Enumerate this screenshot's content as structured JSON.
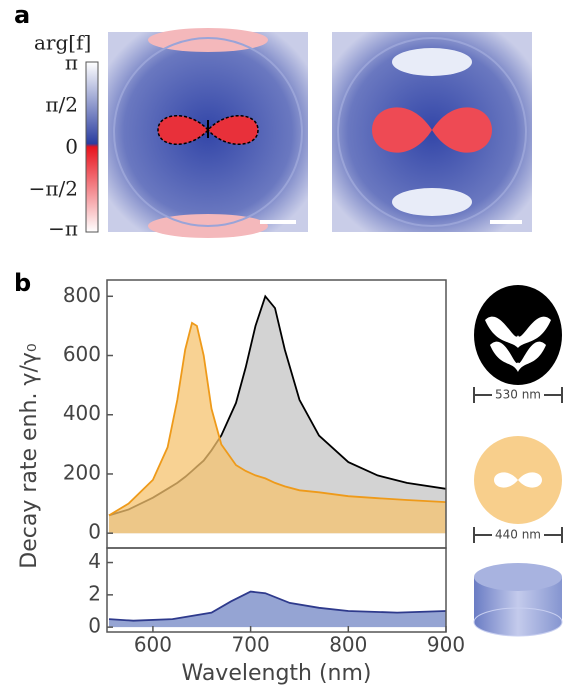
{
  "panel_labels": [
    "a",
    "b"
  ],
  "colorbar": {
    "label": "arg[f]",
    "ticks": [
      "π",
      "π/2",
      "0",
      "−π/2",
      "−π"
    ]
  },
  "scale_labels": [
    "530 nm",
    "440 nm"
  ],
  "chart_data": [
    {
      "type": "area",
      "ylabel": "Decay rate enh. γ/γ₀",
      "x": [
        555,
        575,
        600,
        615,
        625,
        633,
        640,
        645,
        652,
        660,
        670,
        685,
        695,
        705,
        715,
        725,
        735,
        750,
        770,
        800,
        830,
        860,
        900
      ],
      "xlim": [
        553,
        900
      ],
      "ylim": [
        -50,
        855
      ],
      "yticks": [
        0,
        200,
        400,
        600,
        800
      ],
      "series": [
        {
          "color": "#000000",
          "fill": "#c4c4c4",
          "values": [
            60,
            80,
            120,
            150,
            170,
            190,
            210,
            225,
            245,
            280,
            330,
            440,
            560,
            700,
            800,
            760,
            620,
            450,
            330,
            240,
            195,
            170,
            150
          ]
        },
        {
          "color": "#ee9a1a",
          "fill": "#f6c36f",
          "values": [
            60,
            100,
            180,
            290,
            450,
            620,
            710,
            700,
            600,
            420,
            300,
            230,
            210,
            195,
            185,
            170,
            158,
            145,
            138,
            125,
            118,
            112,
            105
          ]
        }
      ]
    },
    {
      "type": "area",
      "xlabel": "Wavelength (nm)",
      "x": [
        555,
        580,
        620,
        660,
        680,
        700,
        715,
        740,
        770,
        800,
        850,
        900
      ],
      "xlim": [
        553,
        900
      ],
      "xticks": [
        600,
        700,
        800,
        900
      ],
      "ylim": [
        -0.3,
        4.9
      ],
      "yticks": [
        0,
        2,
        4
      ],
      "series": [
        {
          "color": "#2e3a8c",
          "fill": "#7186c4",
          "values": [
            0.5,
            0.4,
            0.5,
            0.9,
            1.6,
            2.2,
            2.1,
            1.5,
            1.2,
            1.0,
            0.9,
            1.0
          ]
        }
      ]
    }
  ]
}
